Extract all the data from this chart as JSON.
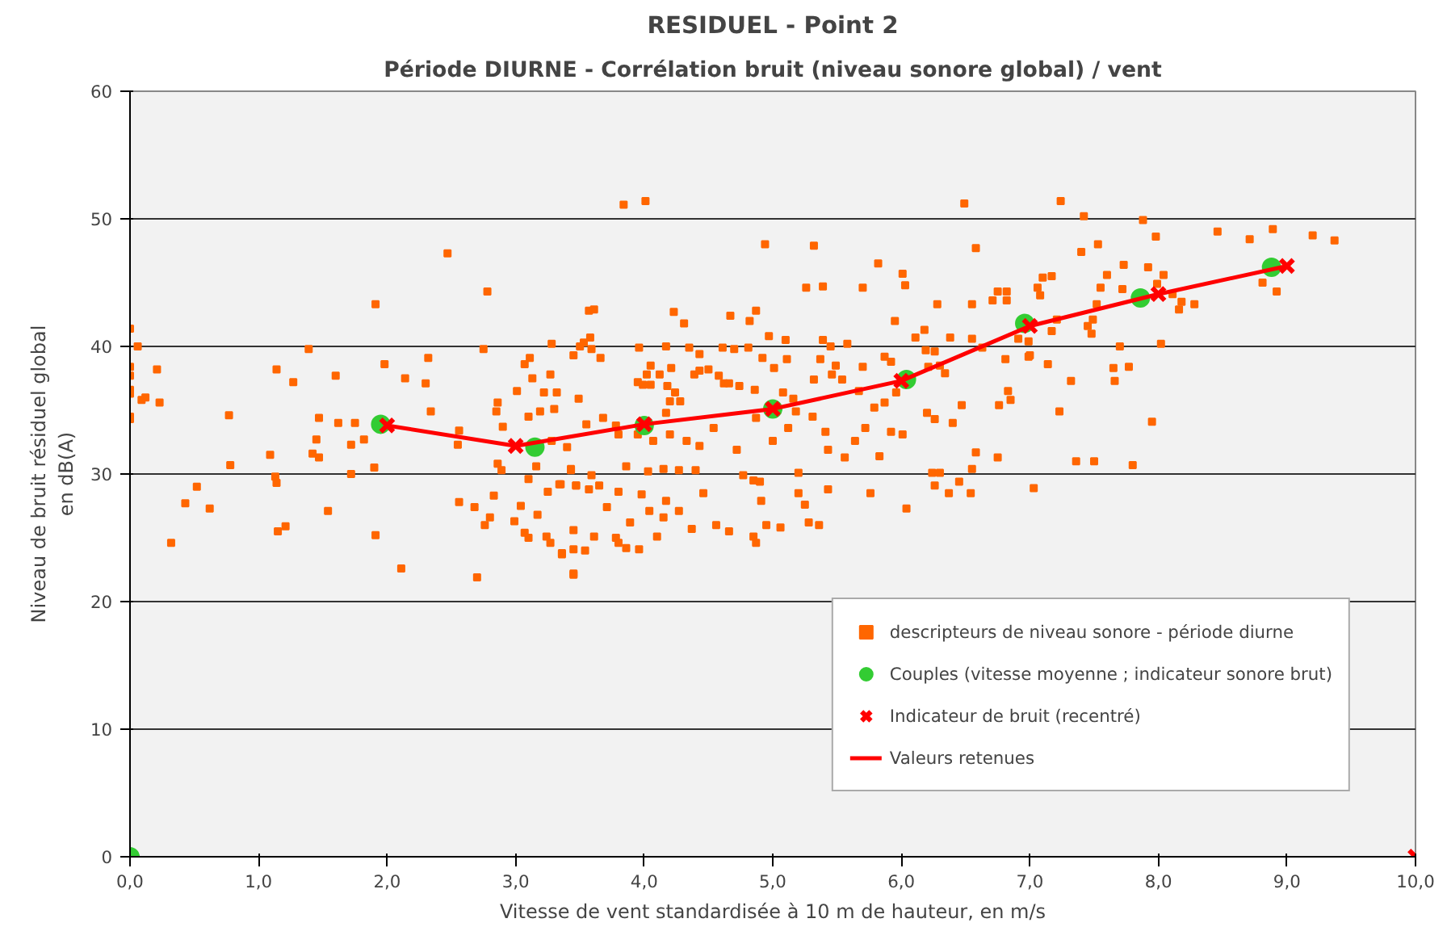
{
  "chart_data": {
    "type": "scatter",
    "title": "RESIDUEL - Point 2",
    "subtitle": "Période DIURNE - Corrélation bruit (niveau sonore global) / vent",
    "xlabel": "Vitesse de vent standardisée à 10 m de hauteur, en m/s",
    "ylabel": "Niveau de bruit résiduel global\nen dB(A)",
    "xlim": [
      0,
      10
    ],
    "ylim": [
      0,
      60
    ],
    "xticks": [
      {
        "value": 0,
        "label": "0,0"
      },
      {
        "value": 1,
        "label": "1,0"
      },
      {
        "value": 2,
        "label": "2,0"
      },
      {
        "value": 3,
        "label": "3,0"
      },
      {
        "value": 4,
        "label": "4,0"
      },
      {
        "value": 5,
        "label": "5,0"
      },
      {
        "value": 6,
        "label": "6,0"
      },
      {
        "value": 7,
        "label": "7,0"
      },
      {
        "value": 8,
        "label": "8,0"
      },
      {
        "value": 9,
        "label": "9,0"
      },
      {
        "value": 10,
        "label": "10,0"
      }
    ],
    "yticks": [
      0,
      10,
      20,
      30,
      40,
      50,
      60
    ],
    "grid": "y",
    "legend": "bottom right",
    "series": [
      {
        "name": "descripteurs de niveau sonore - période diurne",
        "marker": "square",
        "color": "#ff6600",
        "x": [
          0.0,
          0.06,
          0.0,
          0.0,
          0.0,
          0.0,
          0.09,
          0.12,
          0.21,
          0.23,
          0.0,
          0.0,
          0.32,
          0.43,
          0.52,
          0.62,
          0.77,
          0.78,
          1.09,
          1.14,
          1.13,
          1.14,
          1.15,
          1.21,
          1.27,
          1.39,
          1.47,
          1.45,
          1.42,
          1.47,
          1.54,
          1.6,
          1.62,
          1.72,
          1.75,
          1.72,
          1.82,
          1.9,
          1.91,
          1.91,
          1.98,
          2.14,
          2.11,
          2.3,
          2.32,
          2.34,
          2.47,
          2.56,
          2.55,
          2.56,
          2.68,
          2.7,
          2.75,
          2.78,
          2.76,
          2.8,
          2.83,
          2.86,
          2.85,
          2.9,
          2.86,
          2.89,
          3.01,
          2.99,
          3.04,
          3.1,
          3.1,
          3.07,
          3.11,
          3.13,
          3.07,
          3.1,
          3.16,
          3.17,
          3.19,
          3.22,
          3.27,
          3.28,
          3.32,
          3.3,
          3.25,
          3.24,
          3.27,
          3.36,
          3.35,
          3.43,
          3.45,
          3.45,
          3.45,
          3.49,
          3.47,
          3.84,
          4.01,
          6.49,
          4.94,
          5.32,
          6.58,
          5.82,
          6.01,
          6.03,
          5.26,
          5.39,
          5.7,
          3.57,
          3.61,
          4.23,
          4.87,
          4.67,
          4.82,
          4.31,
          6.28,
          5.95,
          6.55,
          6.75,
          6.82,
          6.71,
          6.82,
          6.18,
          6.38,
          6.55,
          6.63,
          3.58,
          3.53,
          3.5,
          3.59,
          3.66,
          3.96,
          4.17,
          4.35,
          4.43,
          4.61,
          4.7,
          4.81,
          4.97,
          5.1,
          4.92,
          5.11,
          5.39,
          5.45,
          5.58,
          5.37,
          5.49,
          6.11,
          6.19,
          6.26,
          6.3,
          5.7,
          5.87,
          5.92,
          4.05,
          4.02,
          3.99,
          3.95,
          4.05,
          4.12,
          4.21,
          4.18,
          4.24,
          4.2,
          4.28,
          4.17,
          4.39,
          4.43,
          4.5,
          4.58,
          4.62,
          4.66,
          4.74,
          4.86,
          5.01,
          5.08,
          5.16,
          5.32,
          5.46,
          5.54,
          5.67,
          5.79,
          5.87,
          6.21,
          6.34,
          5.96,
          3.28,
          3.4,
          3.55,
          3.68,
          3.78,
          3.8,
          3.95,
          4.07,
          4.2,
          4.33,
          4.43,
          4.54,
          4.72,
          4.87,
          5.0,
          5.12,
          5.18,
          5.31,
          5.41,
          5.43,
          5.56,
          5.64,
          5.72,
          5.83,
          5.92,
          6.01,
          6.2,
          6.26,
          6.4,
          6.47,
          6.58,
          6.75,
          6.83,
          6.85,
          6.99,
          3.43,
          3.34,
          3.47,
          3.57,
          3.59,
          3.65,
          3.71,
          3.8,
          3.86,
          3.98,
          4.03,
          4.04,
          4.15,
          4.17,
          4.15,
          4.27,
          4.27,
          4.4,
          4.46,
          4.37,
          4.56,
          4.66,
          4.77,
          4.85,
          4.91,
          4.9,
          5.06,
          4.95,
          4.85,
          4.87,
          5.2,
          5.2,
          5.25,
          5.28,
          5.36,
          5.43,
          5.76,
          6.04,
          6.24,
          6.3,
          6.26,
          6.37,
          6.45,
          6.54,
          3.36,
          3.45,
          3.54,
          3.45,
          3.78,
          3.8,
          3.86,
          3.89,
          3.61,
          4.1,
          3.96,
          7.24,
          7.42,
          7.88,
          7.98,
          8.46,
          8.89,
          9.2,
          9.37,
          8.71,
          7.4,
          7.53,
          7.73,
          7.92,
          7.6,
          7.55,
          7.72,
          8.04,
          7.99,
          8.81,
          8.92,
          7.17,
          7.1,
          7.06,
          7.08,
          8.11,
          8.18,
          8.28,
          8.16,
          7.52,
          7.49,
          7.45,
          7.48,
          7.21,
          7.17,
          6.99,
          6.91,
          7.0,
          7.7,
          8.02,
          7.65,
          7.77,
          7.66,
          6.81,
          7.14,
          7.32,
          6.76,
          7.23,
          7.95,
          6.55,
          7.03,
          7.36,
          7.5,
          7.8
        ],
        "values": [
          41.4,
          40.0,
          38.4,
          37.7,
          36.6,
          36.3,
          35.8,
          36.0,
          38.2,
          35.6,
          34.5,
          34.3,
          24.6,
          27.7,
          29.0,
          27.3,
          34.6,
          30.7,
          31.5,
          38.2,
          29.8,
          29.3,
          25.5,
          25.9,
          37.2,
          39.8,
          34.4,
          32.7,
          31.6,
          31.3,
          27.1,
          37.7,
          34.0,
          32.3,
          34.0,
          30.0,
          32.7,
          30.5,
          43.3,
          25.2,
          38.6,
          37.5,
          22.6,
          37.1,
          39.1,
          34.9,
          47.3,
          33.4,
          32.3,
          27.8,
          27.4,
          21.9,
          39.8,
          44.3,
          26.0,
          26.6,
          28.3,
          35.6,
          34.9,
          33.7,
          30.8,
          30.3,
          36.5,
          26.3,
          27.5,
          34.5,
          29.6,
          38.6,
          39.1,
          37.5,
          25.4,
          25.0,
          30.6,
          26.8,
          34.9,
          36.4,
          37.8,
          40.2,
          36.4,
          35.1,
          28.6,
          25.1,
          24.6,
          23.7,
          29.2,
          30.3,
          39.3,
          25.6,
          22.1,
          35.9,
          29.1,
          51.1,
          51.4,
          51.2,
          48.0,
          47.9,
          47.7,
          46.5,
          45.7,
          44.8,
          44.6,
          44.7,
          44.6,
          42.8,
          42.9,
          42.7,
          42.8,
          42.4,
          42.0,
          41.8,
          43.3,
          42.0,
          43.3,
          44.3,
          44.3,
          43.6,
          43.6,
          41.3,
          40.7,
          40.6,
          39.9,
          40.7,
          40.3,
          40.0,
          39.8,
          39.1,
          39.9,
          40.0,
          39.9,
          39.4,
          39.9,
          39.8,
          39.9,
          40.8,
          40.5,
          39.1,
          39.0,
          40.5,
          40.0,
          40.2,
          39.0,
          38.5,
          40.7,
          39.7,
          39.6,
          38.5,
          38.4,
          39.2,
          38.8,
          38.5,
          37.8,
          37.0,
          37.2,
          37.0,
          37.8,
          38.3,
          36.9,
          36.4,
          35.7,
          35.7,
          34.8,
          37.8,
          38.1,
          38.2,
          37.7,
          37.1,
          37.1,
          36.9,
          36.6,
          38.3,
          36.4,
          35.9,
          37.4,
          37.8,
          37.4,
          36.5,
          35.2,
          35.6,
          38.4,
          37.9,
          36.4,
          32.6,
          32.1,
          33.9,
          34.4,
          33.8,
          33.1,
          33.1,
          32.6,
          33.1,
          32.6,
          32.2,
          33.6,
          31.9,
          34.4,
          32.6,
          33.6,
          34.9,
          34.5,
          33.3,
          31.9,
          31.3,
          32.6,
          33.6,
          31.4,
          33.3,
          33.1,
          34.8,
          34.3,
          34.0,
          35.4,
          31.7,
          31.3,
          36.5,
          35.8,
          39.2,
          30.4,
          29.2,
          29.1,
          28.8,
          29.9,
          29.1,
          27.4,
          28.6,
          30.6,
          28.4,
          30.2,
          27.1,
          30.4,
          27.9,
          26.6,
          30.3,
          27.1,
          30.3,
          28.5,
          25.7,
          26.0,
          25.5,
          29.9,
          29.5,
          27.9,
          29.4,
          25.8,
          26.0,
          25.1,
          24.6,
          30.1,
          28.5,
          27.6,
          26.2,
          26.0,
          28.8,
          28.5,
          27.3,
          30.1,
          30.1,
          29.1,
          28.5,
          29.4,
          28.5,
          23.8,
          24.1,
          24.0,
          22.2,
          25.0,
          24.6,
          24.2,
          26.2,
          25.1,
          25.1,
          24.1,
          51.4,
          50.2,
          49.9,
          48.6,
          49.0,
          49.2,
          48.7,
          48.3,
          48.4,
          47.4,
          48.0,
          46.4,
          46.2,
          45.6,
          44.6,
          44.5,
          45.6,
          44.9,
          45.0,
          44.3,
          45.5,
          45.4,
          44.6,
          44.0,
          44.1,
          43.5,
          43.3,
          42.9,
          43.3,
          42.1,
          41.6,
          41.0,
          42.1,
          41.2,
          40.4,
          40.6,
          39.3,
          40.0,
          40.2,
          38.3,
          38.4,
          37.3,
          39.0,
          38.6,
          37.3,
          35.4,
          34.9,
          34.1,
          30.4,
          28.9,
          31.0,
          31.0,
          30.7
        ]
      },
      {
        "name": "Couples (vitesse moyenne ; indicateur sonore brut)",
        "marker": "circle",
        "color": "#33cc33",
        "x": [
          0,
          1.95,
          3.15,
          4.0,
          5.0,
          6.04,
          6.96,
          7.86,
          8.88
        ],
        "values": [
          0,
          33.9,
          32.1,
          33.8,
          35.1,
          37.4,
          41.8,
          43.8,
          46.2
        ]
      },
      {
        "name": "Indicateur de bruit (recentré)",
        "marker": "cross",
        "color": "#ff0000",
        "x": [
          2,
          3,
          4,
          5,
          6,
          7,
          8,
          9,
          10
        ],
        "values": [
          33.8,
          32.2,
          33.9,
          35.1,
          37.3,
          41.6,
          44.1,
          46.3,
          0
        ]
      },
      {
        "name": "Valeurs retenues",
        "type": "line",
        "marker": "none",
        "line_style": "solid",
        "color": "#ff0000",
        "x": [
          2,
          3,
          4,
          5,
          6,
          7,
          8,
          9
        ],
        "values": [
          33.8,
          32.2,
          33.9,
          35.1,
          37.3,
          41.6,
          44.1,
          46.3
        ]
      }
    ]
  }
}
